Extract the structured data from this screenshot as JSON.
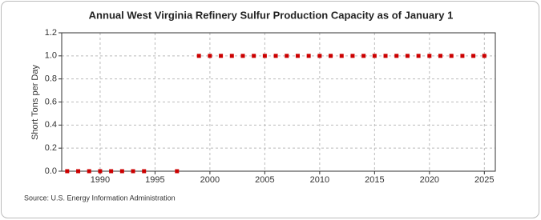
{
  "chart_data": {
    "type": "scatter",
    "title": "Annual West Virginia Refinery Sulfur Production Capacity as of January 1",
    "y_label": "Short Tons per Day",
    "source": "Source: U.S. Energy Information Administration",
    "x": [
      1987,
      1988,
      1989,
      1990,
      1991,
      1992,
      1993,
      1994,
      1997,
      1999,
      2000,
      2001,
      2002,
      2003,
      2004,
      2005,
      2006,
      2007,
      2008,
      2009,
      2010,
      2011,
      2012,
      2013,
      2014,
      2015,
      2016,
      2017,
      2018,
      2019,
      2020,
      2021,
      2022,
      2023,
      2024,
      2025
    ],
    "values": [
      0,
      0,
      0,
      0,
      0,
      0,
      0,
      0,
      0,
      1,
      1,
      1,
      1,
      1,
      1,
      1,
      1,
      1,
      1,
      1,
      1,
      1,
      1,
      1,
      1,
      1,
      1,
      1,
      1,
      1,
      1,
      1,
      1,
      1,
      1,
      1
    ],
    "color": "#cc0000",
    "xlim": [
      1986.5,
      2026
    ],
    "xticks": [
      1990,
      1995,
      2000,
      2005,
      2010,
      2015,
      2020,
      2025
    ],
    "ylim": [
      0,
      1.2
    ],
    "yticks": [
      {
        "value": 0,
        "label": "0.0"
      },
      {
        "value": 0.2,
        "label": "0.2"
      },
      {
        "value": 0.4,
        "label": "0.4"
      },
      {
        "value": 0.6,
        "label": "0.6"
      },
      {
        "value": 0.8,
        "label": "0.8"
      },
      {
        "value": 1,
        "label": "1.0"
      },
      {
        "value": 1.2,
        "label": "1.2"
      }
    ],
    "grid": true
  }
}
